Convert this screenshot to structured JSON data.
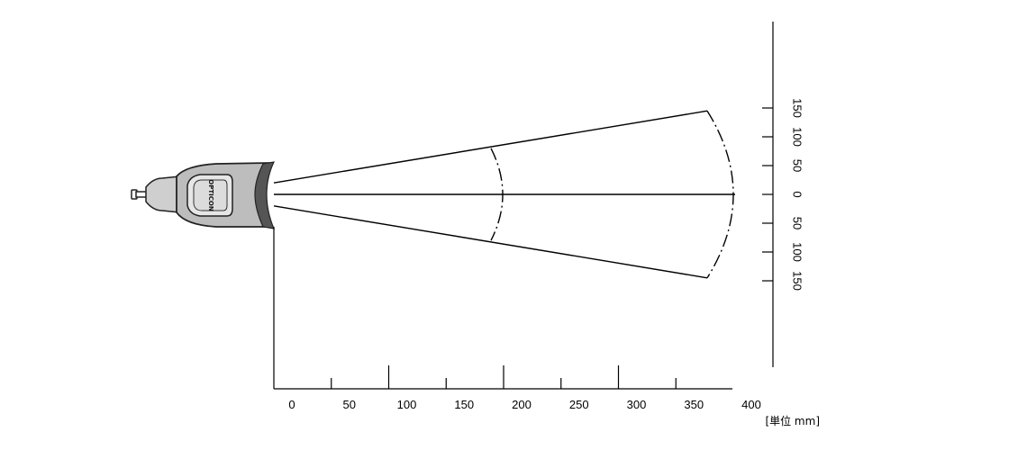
{
  "diagram": {
    "x_axis": {
      "ticks": [
        0,
        50,
        100,
        150,
        200,
        250,
        300,
        350,
        400
      ],
      "range": [
        0,
        400
      ]
    },
    "y_axis": {
      "ticks": [
        150,
        100,
        50,
        0,
        50,
        100,
        150
      ],
      "range": [
        -150,
        150
      ]
    },
    "unit_label": "[単位 mm]",
    "scanner_brand": "OPTICON",
    "field_of_view": {
      "origin_half_width_mm": 20,
      "arcs": [
        {
          "distance_mm": 200,
          "half_width_mm": 80
        },
        {
          "distance_mm": 400,
          "half_width_mm": 145
        }
      ]
    }
  }
}
